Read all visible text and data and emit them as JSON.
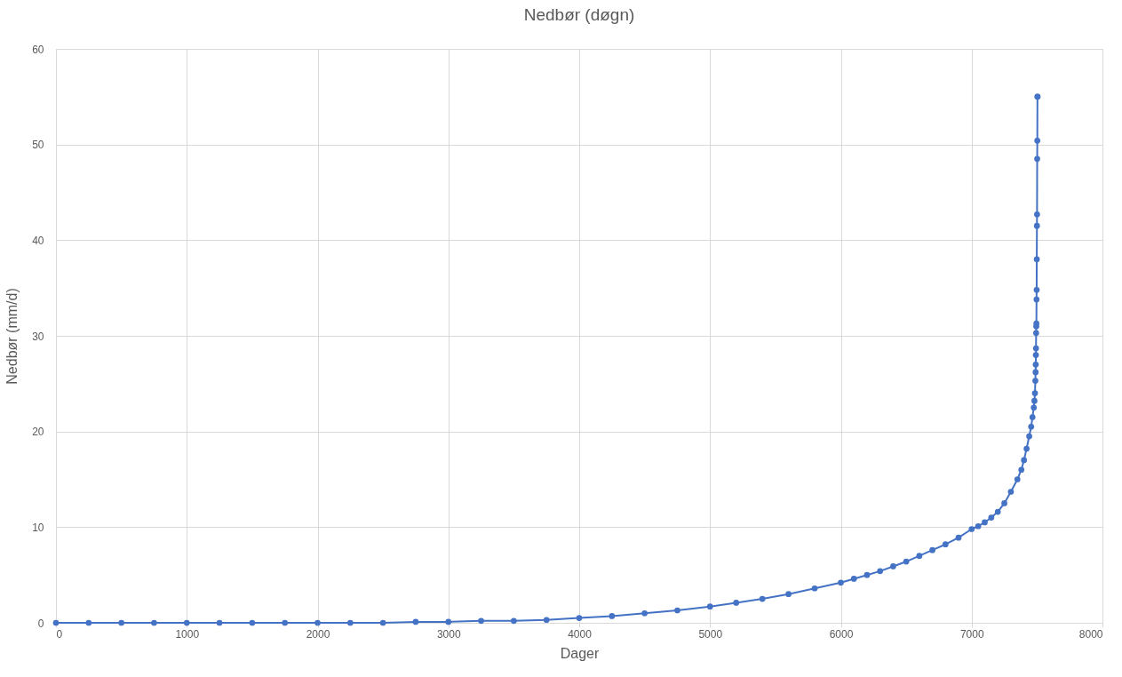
{
  "chart_data": {
    "type": "line",
    "title": "Nedbør (døgn)",
    "xlabel": "Dager",
    "ylabel": "Nedbør (mm/d)",
    "marker": "circle",
    "grid": true,
    "xlim": [
      0,
      8000
    ],
    "ylim": [
      0,
      60
    ],
    "xticks": [
      0,
      1000,
      2000,
      3000,
      4000,
      5000,
      6000,
      7000,
      8000
    ],
    "yticks": [
      0,
      10,
      20,
      30,
      40,
      50,
      60
    ],
    "series": [
      {
        "color": "#4472c4",
        "x": [
          0,
          250,
          500,
          750,
          1000,
          1250,
          1500,
          1750,
          2000,
          2250,
          2500,
          2750,
          3000,
          3250,
          3500,
          3750,
          4000,
          4250,
          4500,
          4750,
          5000,
          5200,
          5400,
          5600,
          5800,
          6000,
          6100,
          6200,
          6300,
          6400,
          6500,
          6600,
          6700,
          6800,
          6900,
          7000,
          7050,
          7100,
          7150,
          7200,
          7250,
          7300,
          7350,
          7380,
          7400,
          7420,
          7440,
          7455,
          7465,
          7475,
          7480,
          7484,
          7487,
          7489,
          7490,
          7491,
          7492,
          7493,
          7494,
          7495,
          7496,
          7497,
          7498,
          7499,
          7500,
          7501,
          7502,
          7503,
          7504
        ],
        "values": [
          0,
          0,
          0,
          0,
          0,
          0,
          0,
          0,
          0,
          0,
          0,
          0.1,
          0.1,
          0.2,
          0.2,
          0.3,
          0.5,
          0.7,
          1.0,
          1.3,
          1.7,
          2.1,
          2.5,
          3.0,
          3.6,
          4.2,
          4.6,
          5.0,
          5.4,
          5.9,
          6.4,
          7.0,
          7.6,
          8.2,
          8.9,
          9.8,
          10.1,
          10.5,
          11.0,
          11.6,
          12.5,
          13.7,
          15.0,
          16.0,
          17.0,
          18.2,
          19.5,
          20.5,
          21.5,
          22.5,
          23.2,
          24.0,
          25.3,
          26.2,
          27.0,
          28.0,
          28.7,
          30.3,
          31.0,
          31.3,
          33.8,
          34.8,
          38.0,
          41.5,
          42.7,
          48.5,
          50.4,
          55.0,
          55.0
        ]
      }
    ]
  }
}
